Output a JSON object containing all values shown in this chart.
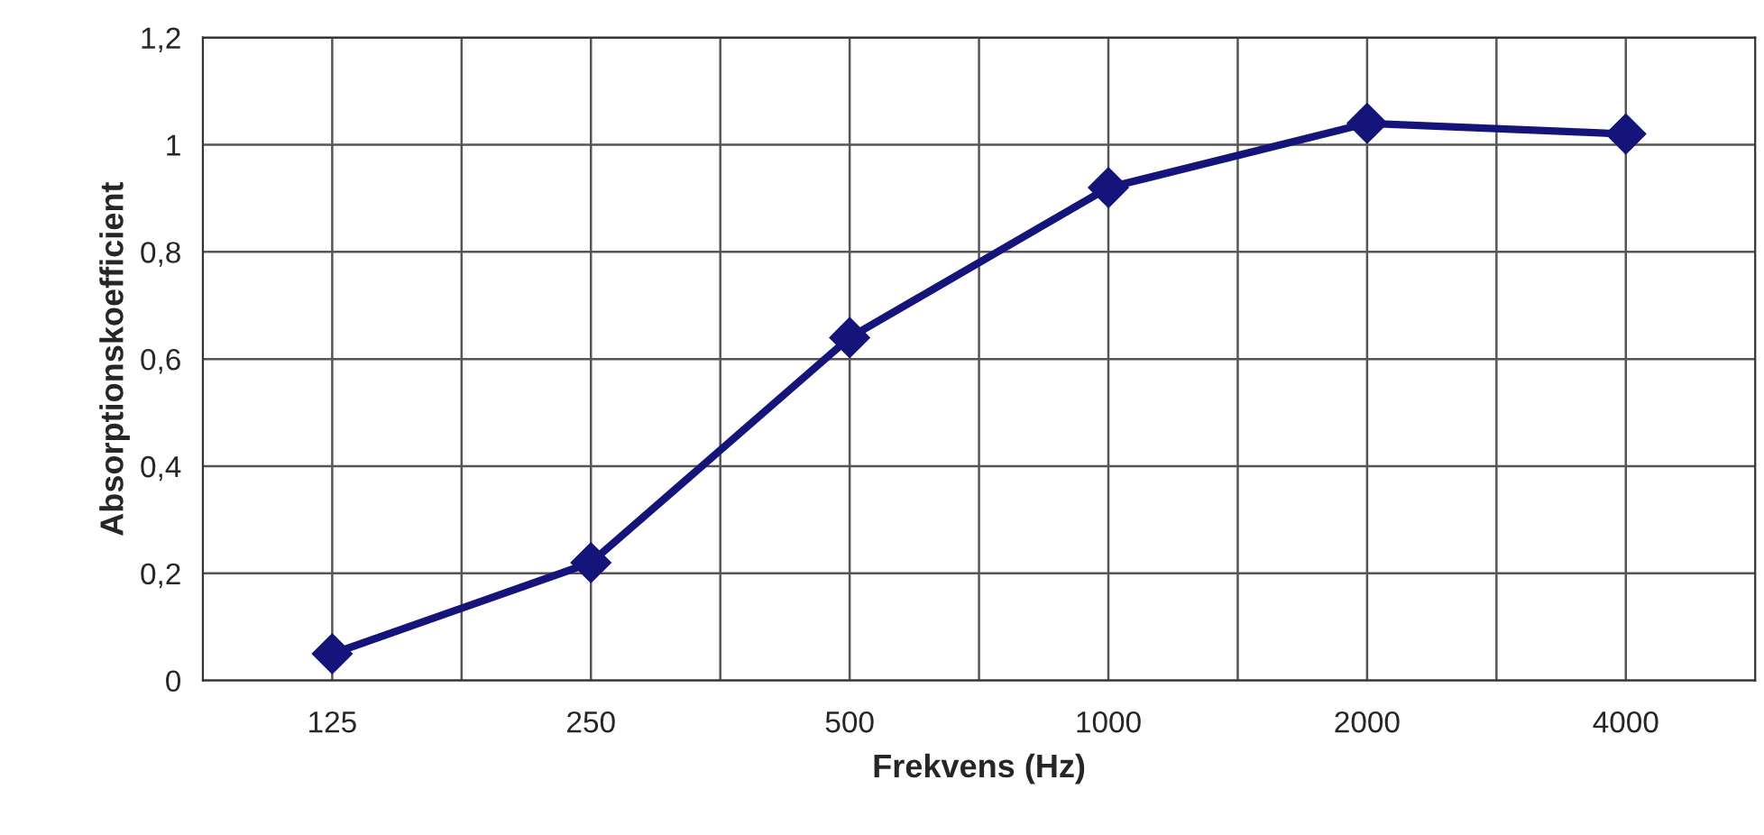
{
  "chart_data": {
    "type": "line",
    "xlabel": "Frekvens (Hz)",
    "ylabel": "Absorptionskoefficient",
    "categories": [
      "125",
      "250",
      "500",
      "1000",
      "2000",
      "4000"
    ],
    "series": [
      {
        "color": "#14147a",
        "values": [
          0.05,
          0.22,
          0.64,
          0.92,
          1.04,
          1.02
        ]
      }
    ],
    "ylim": [
      0,
      1.2
    ],
    "yticks": [
      0,
      {
        "value": 0.2,
        "label": "0,2"
      },
      {
        "value": 0.4,
        "label": "0,4"
      },
      {
        "value": 0.6,
        "label": "0,6"
      },
      {
        "value": 0.8,
        "label": "0,8"
      },
      1,
      {
        "value": 1.2,
        "label": "1,2"
      }
    ],
    "grid": true,
    "marker": "diamond",
    "line_style": "solid"
  }
}
